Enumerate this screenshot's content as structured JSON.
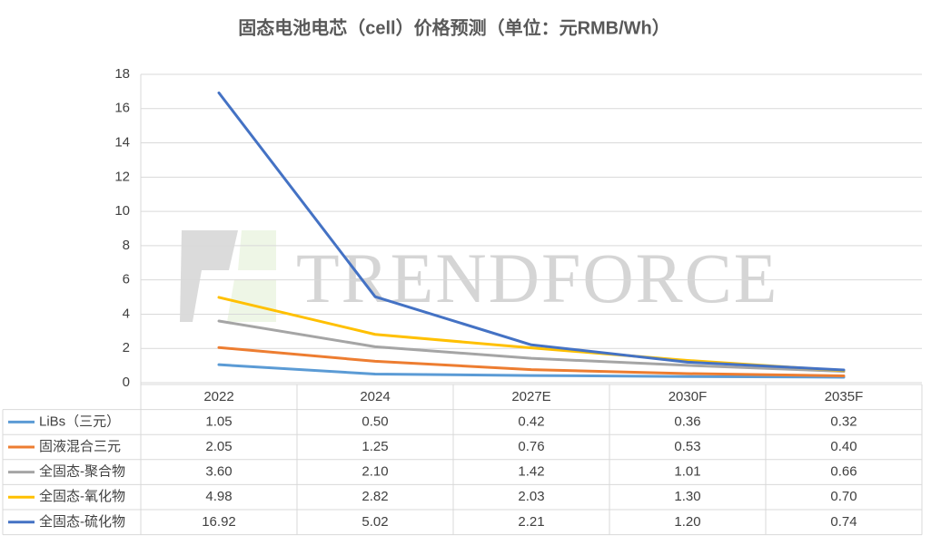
{
  "chart_data": {
    "type": "line",
    "title": "固态电池电芯（cell）价格预测（单位：元RMB/Wh）",
    "watermark": "TRENDFORCE",
    "categories": [
      "2022",
      "2024",
      "2027E",
      "2030F",
      "2035F"
    ],
    "series": [
      {
        "name": "LiBs（三元）",
        "color": "#5b9bd5",
        "values": [
          1.05,
          0.5,
          0.42,
          0.36,
          0.32
        ],
        "value_labels": [
          "1.05",
          "0.50",
          "0.42",
          "0.36",
          "0.32"
        ]
      },
      {
        "name": "固液混合三元",
        "color": "#ed7d31",
        "values": [
          2.05,
          1.25,
          0.76,
          0.53,
          0.4
        ],
        "value_labels": [
          "2.05",
          "1.25",
          "0.76",
          "0.53",
          "0.40"
        ]
      },
      {
        "name": "全固态-聚合物",
        "color": "#a5a5a5",
        "values": [
          3.6,
          2.1,
          1.42,
          1.01,
          0.66
        ],
        "value_labels": [
          "3.60",
          "2.10",
          "1.42",
          "1.01",
          "0.66"
        ]
      },
      {
        "name": "全固态-氧化物",
        "color": "#ffc000",
        "values": [
          4.98,
          2.82,
          2.03,
          1.3,
          0.7
        ],
        "value_labels": [
          "4.98",
          "2.82",
          "2.03",
          "1.30",
          "0.70"
        ]
      },
      {
        "name": "全固态-硫化物",
        "color": "#4472c4",
        "values": [
          16.92,
          5.02,
          2.21,
          1.2,
          0.74
        ],
        "value_labels": [
          "16.92",
          "5.02",
          "2.21",
          "1.20",
          "0.74"
        ]
      }
    ],
    "ylim": [
      0,
      18
    ],
    "yticks": [
      0,
      2,
      4,
      6,
      8,
      10,
      12,
      14,
      16,
      18
    ],
    "grid": true
  }
}
